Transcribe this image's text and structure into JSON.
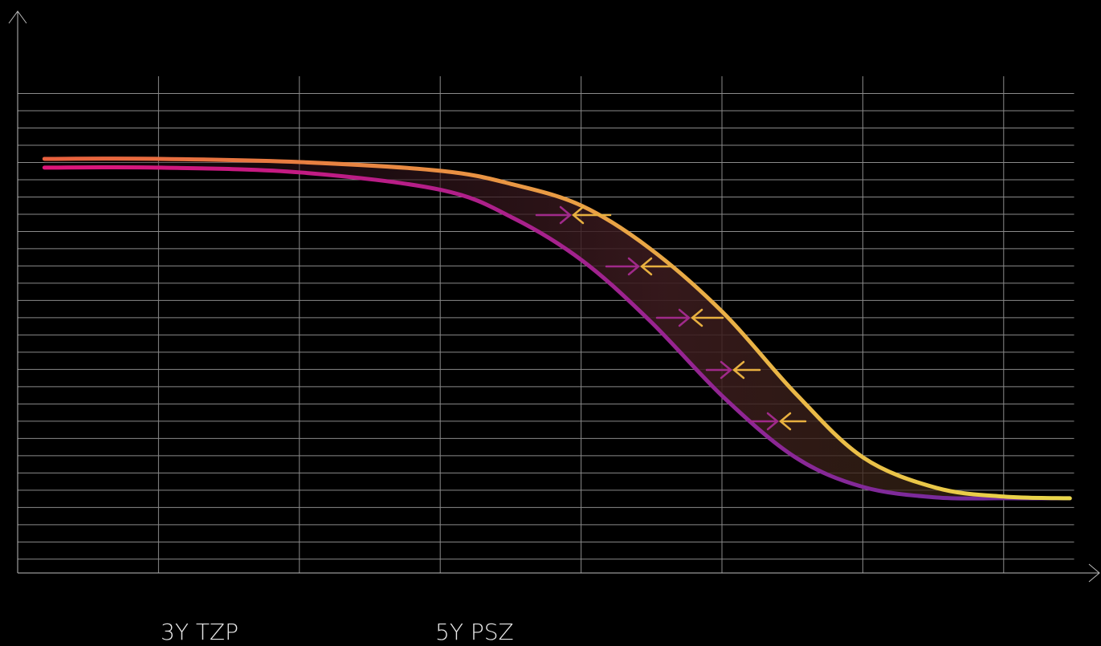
{
  "chart_data": {
    "type": "line",
    "x": [
      0.19,
      1.01,
      2.01,
      3.01,
      3.52,
      4.01,
      4.49,
      5.01,
      5.52,
      6.0,
      6.52,
      7.0,
      7.47
    ],
    "series": [
      {
        "name": "3Y TZP",
        "gradient": [
          "#e0157a",
          "#6a2ea0"
        ],
        "values": [
          23.7,
          23.7,
          23.42,
          22.4,
          20.77,
          18.3,
          14.81,
          10.4,
          6.91,
          5.19,
          4.58,
          4.53,
          4.53
        ]
      },
      {
        "name": "5Y PSZ",
        "gradient": [
          "#e8603e",
          "#ead84a"
        ],
        "values": [
          24.21,
          24.21,
          24.02,
          23.51,
          22.72,
          21.47,
          19.0,
          15.28,
          10.63,
          6.91,
          5.14,
          4.63,
          4.53
        ]
      }
    ],
    "xlim": [
      0,
      7.5
    ],
    "ylim": [
      0.2,
      29
    ],
    "xticks": [
      1,
      2,
      3,
      4,
      5,
      6,
      7
    ],
    "yticks": [
      1,
      2,
      3,
      4,
      5,
      6,
      7,
      8,
      9,
      10,
      11,
      12,
      13,
      14,
      15,
      16,
      17,
      18,
      19,
      20,
      21,
      22,
      23,
      24,
      25,
      26,
      27,
      28
    ],
    "grid": true
  }
}
